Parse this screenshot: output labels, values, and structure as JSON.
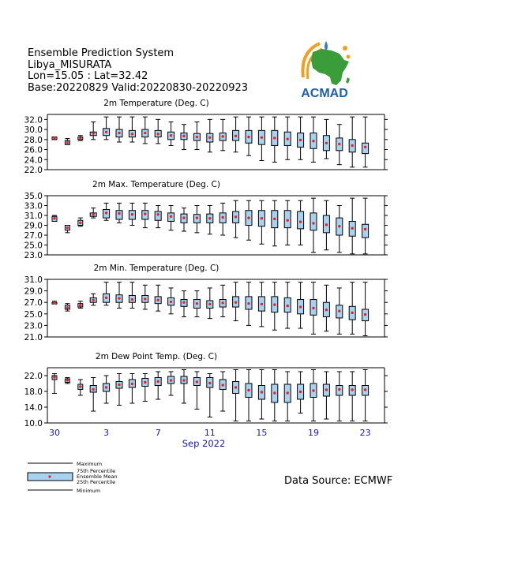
{
  "header": {
    "line1": "Ensemble Prediction System",
    "line2": "Libya_MISURATA",
    "line3": "Lon=15.05 : Lat=32.42",
    "line4": "Base:20220829 Valid:20220830-20220923"
  },
  "logo": {
    "text": "ACMAD",
    "colors": {
      "africa": "#3a9d3a",
      "arc": "#f0a020",
      "drop": "#2a7fd0",
      "text": "#1f5fa8"
    }
  },
  "source": "Data Source: ECMWF",
  "legend": {
    "maximum": "Maximum",
    "p75": "75th Percentile",
    "mean": "Ensemble Mean",
    "p25": "25th Percentile",
    "minimum": "Minimum"
  },
  "colors": {
    "box": "#a9d2f0",
    "mean": "#e8202a",
    "tick_labels": "#1a1aa0"
  },
  "xaxis": {
    "month_label": "Sep 2022",
    "tick_labels": [
      "30",
      "3",
      "7",
      "11",
      "15",
      "19",
      "23"
    ],
    "tick_day_index": [
      0,
      4,
      8,
      12,
      16,
      20,
      24
    ]
  },
  "chart_data": [
    {
      "type": "box",
      "title": "2m Temperature (Deg. C)",
      "ylim": [
        22,
        33
      ],
      "yticks": [
        "22.0",
        "24.0",
        "26.0",
        "28.0",
        "30.0",
        "32.0"
      ],
      "ytick_values": [
        22,
        24,
        26,
        28,
        30,
        32
      ],
      "x": [
        "2022-08-30",
        "2022-08-31",
        "2022-09-01",
        "2022-09-02",
        "2022-09-03",
        "2022-09-04",
        "2022-09-05",
        "2022-09-06",
        "2022-09-07",
        "2022-09-08",
        "2022-09-09",
        "2022-09-10",
        "2022-09-11",
        "2022-09-12",
        "2022-09-13",
        "2022-09-14",
        "2022-09-15",
        "2022-09-16",
        "2022-09-17",
        "2022-09-18",
        "2022-09-19",
        "2022-09-20",
        "2022-09-21",
        "2022-09-22",
        "2022-09-23"
      ],
      "min": [
        28.0,
        27.0,
        27.8,
        28.0,
        28.0,
        27.5,
        27.5,
        27.2,
        27.2,
        26.8,
        26.0,
        26.0,
        25.5,
        25.8,
        25.5,
        24.8,
        23.8,
        23.5,
        24.0,
        24.0,
        23.5,
        24.2,
        23.0,
        22.5,
        22.5
      ],
      "p25": [
        28.0,
        27.0,
        28.0,
        28.8,
        28.8,
        28.5,
        28.5,
        28.5,
        28.5,
        28.0,
        28.0,
        27.8,
        27.5,
        27.8,
        27.8,
        27.3,
        27.0,
        26.8,
        26.8,
        26.5,
        26.2,
        25.8,
        25.8,
        25.5,
        25.2
      ],
      "mean": [
        28.3,
        27.4,
        28.2,
        29.2,
        29.5,
        29.3,
        29.1,
        29.3,
        29.1,
        28.8,
        28.7,
        28.5,
        28.4,
        28.6,
        28.7,
        28.5,
        28.4,
        28.3,
        28.1,
        27.9,
        27.7,
        27.3,
        27.1,
        26.8,
        26.5
      ],
      "p75": [
        28.5,
        27.8,
        28.5,
        29.5,
        30.2,
        30.0,
        29.8,
        30.0,
        29.8,
        29.5,
        29.3,
        29.2,
        29.2,
        29.3,
        29.8,
        29.8,
        29.8,
        29.8,
        29.5,
        29.3,
        29.3,
        28.8,
        28.3,
        28.0,
        27.3
      ],
      "max": [
        28.5,
        28.2,
        28.8,
        31.5,
        32.5,
        32.5,
        32.5,
        32.5,
        32.0,
        31.5,
        31.0,
        31.5,
        32.0,
        32.0,
        32.5,
        32.5,
        32.5,
        32.5,
        32.5,
        32.5,
        32.5,
        32.0,
        31.0,
        32.5,
        32.5
      ]
    },
    {
      "type": "box",
      "title": "2m Max. Temperature (Deg. C)",
      "ylim": [
        23,
        35
      ],
      "yticks": [
        "23.0",
        "25.0",
        "27.0",
        "29.0",
        "31.0",
        "33.0",
        "35.0"
      ],
      "ytick_values": [
        23,
        25,
        27,
        29,
        31,
        33,
        35
      ],
      "x": [
        "2022-08-30",
        "2022-08-31",
        "2022-09-01",
        "2022-09-02",
        "2022-09-03",
        "2022-09-04",
        "2022-09-05",
        "2022-09-06",
        "2022-09-07",
        "2022-09-08",
        "2022-09-09",
        "2022-09-10",
        "2022-09-11",
        "2022-09-12",
        "2022-09-13",
        "2022-09-14",
        "2022-09-15",
        "2022-09-16",
        "2022-09-17",
        "2022-09-18",
        "2022-09-19",
        "2022-09-20",
        "2022-09-21",
        "2022-09-22",
        "2022-09-23"
      ],
      "min": [
        29.8,
        27.5,
        28.8,
        30.5,
        30.0,
        29.5,
        29.0,
        28.5,
        28.5,
        28.0,
        27.8,
        27.5,
        27.2,
        27.0,
        26.5,
        26.0,
        25.2,
        24.8,
        25.0,
        25.0,
        23.5,
        24.0,
        23.5,
        23.2,
        23.2
      ],
      "p25": [
        29.8,
        28.0,
        29.0,
        30.8,
        30.5,
        30.2,
        30.2,
        30.2,
        30.0,
        29.8,
        29.5,
        29.5,
        29.5,
        29.5,
        29.5,
        29.0,
        28.8,
        28.5,
        28.5,
        28.3,
        28.0,
        27.5,
        27.0,
        26.8,
        26.5
      ],
      "mean": [
        30.4,
        28.5,
        29.5,
        31.2,
        31.5,
        31.4,
        31.2,
        31.3,
        31.2,
        30.8,
        30.5,
        30.5,
        30.4,
        30.6,
        30.7,
        30.5,
        30.4,
        30.3,
        30.0,
        29.7,
        29.4,
        29.1,
        28.8,
        28.4,
        28.2
      ],
      "p75": [
        30.8,
        29.0,
        30.0,
        31.5,
        32.2,
        32.0,
        32.0,
        32.0,
        31.8,
        31.5,
        31.3,
        31.2,
        31.3,
        31.5,
        31.8,
        32.0,
        32.0,
        32.0,
        32.0,
        31.8,
        31.5,
        31.0,
        30.5,
        29.8,
        29.2
      ],
      "max": [
        31.0,
        29.0,
        30.5,
        32.5,
        33.5,
        33.5,
        33.5,
        33.5,
        33.0,
        33.0,
        32.5,
        33.0,
        33.0,
        33.5,
        34.0,
        34.0,
        34.0,
        34.0,
        34.0,
        34.0,
        34.5,
        34.0,
        33.0,
        34.5,
        34.5
      ]
    },
    {
      "type": "box",
      "title": "2m Min. Temperature (Deg. C)",
      "ylim": [
        21,
        31
      ],
      "yticks": [
        "21.0",
        "23.0",
        "25.0",
        "27.0",
        "29.0",
        "31.0"
      ],
      "ytick_values": [
        21,
        23,
        25,
        27,
        29,
        31
      ],
      "x": [
        "2022-08-30",
        "2022-08-31",
        "2022-09-01",
        "2022-09-02",
        "2022-09-03",
        "2022-09-04",
        "2022-09-05",
        "2022-09-06",
        "2022-09-07",
        "2022-09-08",
        "2022-09-09",
        "2022-09-10",
        "2022-09-11",
        "2022-09-12",
        "2022-09-13",
        "2022-09-14",
        "2022-09-15",
        "2022-09-16",
        "2022-09-17",
        "2022-09-18",
        "2022-09-19",
        "2022-09-20",
        "2022-09-21",
        "2022-09-22",
        "2022-09-23"
      ],
      "min": [
        26.8,
        25.5,
        26.0,
        26.5,
        26.5,
        26.0,
        26.0,
        25.8,
        25.5,
        25.0,
        24.5,
        24.5,
        24.2,
        24.5,
        23.8,
        23.0,
        22.8,
        22.2,
        22.5,
        22.5,
        21.5,
        22.0,
        21.5,
        21.5,
        21.2
      ],
      "p25": [
        26.8,
        25.8,
        26.2,
        27.0,
        27.0,
        27.0,
        27.0,
        27.0,
        26.8,
        26.5,
        26.3,
        26.0,
        26.0,
        26.2,
        26.2,
        25.8,
        25.5,
        25.3,
        25.3,
        25.0,
        24.8,
        24.5,
        24.3,
        24.0,
        23.8
      ],
      "mean": [
        26.9,
        26.1,
        26.5,
        27.4,
        27.8,
        27.7,
        27.5,
        27.6,
        27.4,
        27.1,
        27.0,
        26.8,
        26.7,
        26.9,
        27.0,
        26.8,
        26.7,
        26.6,
        26.4,
        26.2,
        26.0,
        25.7,
        25.5,
        25.2,
        24.9
      ],
      "p75": [
        27.0,
        26.5,
        26.8,
        27.8,
        28.5,
        28.3,
        28.2,
        28.2,
        28.0,
        27.8,
        27.5,
        27.5,
        27.3,
        27.5,
        28.0,
        28.0,
        28.0,
        28.0,
        27.8,
        27.5,
        27.5,
        27.0,
        26.5,
        26.3,
        25.8
      ],
      "max": [
        27.2,
        26.8,
        27.2,
        28.5,
        30.5,
        30.5,
        30.5,
        30.0,
        30.0,
        29.5,
        29.0,
        29.0,
        29.5,
        30.0,
        30.5,
        30.5,
        30.5,
        30.5,
        30.5,
        30.5,
        30.5,
        30.0,
        29.5,
        30.5,
        30.5
      ]
    },
    {
      "type": "box",
      "title": "2m Dew Point Temp. (Deg. C)",
      "ylim": [
        10,
        24
      ],
      "yticks": [
        "10.0",
        "14.0",
        "18.0",
        "22.0"
      ],
      "ytick_values": [
        10,
        14,
        18,
        22
      ],
      "x": [
        "2022-08-30",
        "2022-08-31",
        "2022-09-01",
        "2022-09-02",
        "2022-09-03",
        "2022-09-04",
        "2022-09-05",
        "2022-09-06",
        "2022-09-07",
        "2022-09-08",
        "2022-09-09",
        "2022-09-10",
        "2022-09-11",
        "2022-09-12",
        "2022-09-13",
        "2022-09-14",
        "2022-09-15",
        "2022-09-16",
        "2022-09-17",
        "2022-09-18",
        "2022-09-19",
        "2022-09-20",
        "2022-09-21",
        "2022-09-22",
        "2022-09-23"
      ],
      "min": [
        17.5,
        20.0,
        17.0,
        13.0,
        15.0,
        14.5,
        15.0,
        15.5,
        16.0,
        17.0,
        15.0,
        13.5,
        11.5,
        13.0,
        10.5,
        10.5,
        11.0,
        10.5,
        10.5,
        12.5,
        10.5,
        11.0,
        10.5,
        10.5,
        10.5
      ],
      "p25": [
        21.0,
        20.3,
        18.5,
        17.8,
        18.0,
        18.8,
        19.0,
        19.3,
        19.5,
        20.0,
        20.0,
        19.5,
        19.0,
        18.5,
        17.5,
        16.5,
        16.0,
        15.2,
        15.2,
        16.0,
        16.5,
        16.8,
        17.0,
        17.0,
        17.0
      ],
      "mean": [
        21.6,
        20.8,
        19.2,
        18.5,
        19.0,
        19.7,
        19.9,
        20.3,
        20.5,
        20.8,
        20.8,
        20.4,
        20.1,
        19.6,
        19.0,
        18.3,
        17.8,
        17.6,
        17.6,
        17.9,
        18.2,
        18.4,
        18.5,
        18.4,
        18.4
      ],
      "p75": [
        22.0,
        21.2,
        19.8,
        19.5,
        20.0,
        20.5,
        21.0,
        21.3,
        21.5,
        21.8,
        21.8,
        21.5,
        21.5,
        21.0,
        20.5,
        20.0,
        19.5,
        19.8,
        19.8,
        19.8,
        20.0,
        19.8,
        19.5,
        19.5,
        19.5
      ],
      "max": [
        22.5,
        21.5,
        21.0,
        21.5,
        22.0,
        22.5,
        22.5,
        22.5,
        23.0,
        23.0,
        23.5,
        23.0,
        22.5,
        23.0,
        23.5,
        23.5,
        23.5,
        23.5,
        23.0,
        23.0,
        23.5,
        23.0,
        23.0,
        23.0,
        23.5
      ]
    }
  ]
}
